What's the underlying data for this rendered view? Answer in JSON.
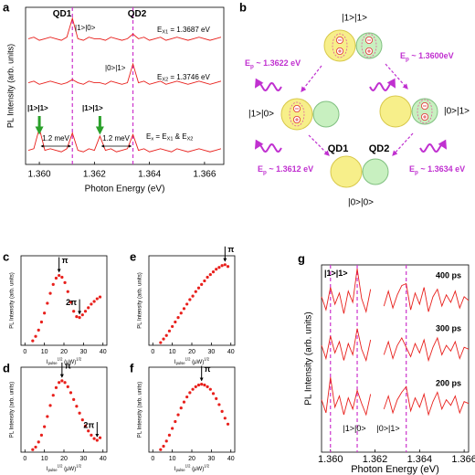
{
  "panel_labels": [
    "a",
    "b",
    "c",
    "d",
    "e",
    "f",
    "g"
  ],
  "chart_data": [
    {
      "type": "line",
      "xlabel": "Photon Energy (eV)",
      "ylabel": "PL Intensity (arb. units)",
      "x": [
        1.3596,
        1.3598,
        1.36,
        1.3602,
        1.3604,
        1.3606,
        1.3608,
        1.361,
        1.3612,
        1.3614,
        1.3616,
        1.3618,
        1.362,
        1.3622,
        1.3624,
        1.3626,
        1.3628,
        1.363,
        1.3632,
        1.3634,
        1.3636,
        1.3638,
        1.364,
        1.3642,
        1.3644,
        1.3646,
        1.3648,
        1.365,
        1.3652,
        1.3654,
        1.3656,
        1.3658,
        1.366,
        1.3662,
        1.3664,
        1.3666
      ],
      "series": [
        {
          "color": "#e8201c",
          "values": [
            8.0,
            8.1,
            7.9,
            8.0,
            8.1,
            8.0,
            7.9,
            8.1,
            9.3,
            8.0,
            7.9,
            8.1,
            8.0,
            8.0,
            7.9,
            8.1,
            8.0,
            7.9,
            8.0,
            8.3,
            8.0,
            8.1,
            7.9,
            8.0,
            8.1,
            7.9,
            8.0,
            8.1,
            8.0,
            7.9,
            8.0,
            8.1,
            8.0,
            7.9,
            8.0,
            8.1
          ]
        },
        {
          "color": "#e8201c",
          "values": [
            5.2,
            5.3,
            5.1,
            5.2,
            5.3,
            5.2,
            5.1,
            5.2,
            5.4,
            5.2,
            5.1,
            5.3,
            5.2,
            5.2,
            5.1,
            5.3,
            5.2,
            5.1,
            5.2,
            6.4,
            5.2,
            5.3,
            5.1,
            5.2,
            5.3,
            5.1,
            5.2,
            5.3,
            5.2,
            5.1,
            5.2,
            5.3,
            5.2,
            5.1,
            5.2,
            5.3
          ]
        },
        {
          "color": "#e8201c",
          "values": [
            0.9,
            1.0,
            2.3,
            0.9,
            1.0,
            0.9,
            0.8,
            1.0,
            2.0,
            0.9,
            0.8,
            1.0,
            0.9,
            1.8,
            0.9,
            1.0,
            0.8,
            0.9,
            1.0,
            1.9,
            0.9,
            1.0,
            0.8,
            0.9,
            1.0,
            0.9,
            0.8,
            1.0,
            0.9,
            0.8,
            0.9,
            1.0,
            0.9,
            0.8,
            0.9,
            1.0
          ]
        }
      ],
      "xlim": [
        1.3595,
        1.3667
      ],
      "ylim": [
        0,
        10
      ],
      "xticks": [
        {
          "value": 1.36,
          "label": "1.360"
        },
        {
          "value": 1.362,
          "label": "1.362"
        },
        {
          "value": 1.364,
          "label": "1.364"
        },
        {
          "value": 1.366,
          "label": "1.366"
        }
      ],
      "vlines": [
        1.3612,
        1.3634
      ],
      "vline_color": "#cc33cc",
      "annotations": [
        {
          "parts": [
            {
              "text": "QD1"
            }
          ]
        },
        {
          "parts": [
            {
              "text": "QD2"
            }
          ]
        },
        {
          "parts": [
            {
              "text": "|1>|0>"
            }
          ]
        },
        {
          "parts": [
            {
              "text": "E"
            },
            {
              "text": "X1",
              "script": "sub"
            },
            {
              "text": " = 1.3687 eV"
            }
          ]
        },
        {
          "parts": [
            {
              "text": "|0>|1>"
            }
          ]
        },
        {
          "parts": [
            {
              "text": "E"
            },
            {
              "text": "X2",
              "script": "sub"
            },
            {
              "text": " = 1.3746 eV"
            }
          ]
        },
        {
          "parts": [
            {
              "text": "|1>|1>"
            }
          ]
        },
        {
          "parts": [
            {
              "text": "|1>|1>"
            }
          ]
        },
        {
          "parts": [
            {
              "text": "1.2 meV"
            }
          ]
        },
        {
          "parts": [
            {
              "text": "1.2 meV"
            }
          ]
        },
        {
          "parts": [
            {
              "text": "E"
            },
            {
              "text": "x",
              "script": "sub"
            },
            {
              "text": " = E"
            },
            {
              "text": "X1",
              "script": "sub"
            },
            {
              "text": " & E"
            },
            {
              "text": "X2",
              "script": "sub"
            }
          ]
        }
      ]
    },
    {
      "type": "scatter",
      "ylabel": "PL Intensity (arb. units)",
      "xlabel": {
        "parts": [
          {
            "text": "I"
          },
          {
            "text": "pulse",
            "script": "sub"
          },
          {
            "text": "1/2",
            "script": "sup"
          },
          {
            "text": " (μW)"
          },
          {
            "text": "1/2",
            "script": "sup"
          }
        ]
      },
      "x": [
        4,
        5.5,
        7,
        8.5,
        10,
        11.5,
        13,
        14.5,
        16,
        17.5,
        19,
        20.5,
        22,
        23.5,
        25,
        26.5,
        28,
        29.5,
        31,
        32.5,
        34,
        35.5,
        37,
        38.5
      ],
      "values": [
        0.05,
        0.1,
        0.17,
        0.26,
        0.36,
        0.47,
        0.58,
        0.68,
        0.75,
        0.78,
        0.76,
        0.7,
        0.6,
        0.48,
        0.38,
        0.32,
        0.31,
        0.34,
        0.38,
        0.42,
        0.46,
        0.49,
        0.52,
        0.54
      ],
      "color": "#e8201c",
      "xlim": [
        -2,
        42
      ],
      "xticks": [
        0,
        10,
        20,
        30,
        40
      ],
      "ylim": [
        0,
        1
      ],
      "annotations": [
        {
          "text": "π",
          "x": 17.5,
          "y": 0.78
        },
        {
          "text": "2π",
          "x": 28,
          "y": 0.31
        }
      ]
    },
    {
      "type": "scatter",
      "ylabel": "PL Intensity (arb. units)",
      "xlabel": {
        "parts": [
          {
            "text": "I"
          },
          {
            "text": "pulse",
            "script": "sub"
          },
          {
            "text": "1/2",
            "script": "sup"
          },
          {
            "text": " (μW)"
          },
          {
            "text": "1/2",
            "script": "sup"
          }
        ]
      },
      "x": [
        4,
        5.5,
        7,
        8.5,
        10,
        11.5,
        13,
        14.5,
        16,
        17.5,
        19,
        20.5,
        22,
        23.5,
        25,
        26.5,
        28,
        29.5,
        31,
        32.5,
        34,
        35.5,
        37,
        38.5
      ],
      "values": [
        0.03,
        0.06,
        0.12,
        0.2,
        0.3,
        0.42,
        0.55,
        0.67,
        0.76,
        0.82,
        0.84,
        0.82,
        0.77,
        0.7,
        0.62,
        0.54,
        0.46,
        0.38,
        0.31,
        0.25,
        0.2,
        0.16,
        0.14,
        0.17
      ],
      "color": "#e8201c",
      "xlim": [
        -2,
        42
      ],
      "xticks": [
        0,
        10,
        20,
        30,
        40
      ],
      "ylim": [
        0,
        1
      ],
      "annotations": [
        {
          "text": "π",
          "x": 19,
          "y": 0.84
        },
        {
          "text": "2π",
          "x": 37,
          "y": 0.14
        }
      ]
    },
    {
      "type": "scatter",
      "ylabel": "PL Intensity (arb. units)",
      "xlabel": {
        "parts": [
          {
            "text": "I"
          },
          {
            "text": "pulse",
            "script": "sub"
          },
          {
            "text": "1/2",
            "script": "sup"
          },
          {
            "text": " (μW)"
          },
          {
            "text": "1/2",
            "script": "sup"
          }
        ]
      },
      "x": [
        4,
        5.5,
        7,
        8.5,
        10,
        11.5,
        13,
        14.5,
        16,
        17.5,
        19,
        20.5,
        22,
        23.5,
        25,
        26.5,
        28,
        29.5,
        31,
        32.5,
        34,
        35.5,
        37,
        38.5
      ],
      "values": [
        0.03,
        0.07,
        0.11,
        0.16,
        0.21,
        0.26,
        0.31,
        0.36,
        0.41,
        0.46,
        0.51,
        0.55,
        0.6,
        0.64,
        0.68,
        0.72,
        0.76,
        0.79,
        0.82,
        0.85,
        0.87,
        0.89,
        0.9,
        0.88
      ],
      "color": "#e8201c",
      "xlim": [
        -2,
        42
      ],
      "xticks": [
        0,
        10,
        20,
        30,
        40
      ],
      "ylim": [
        0,
        1
      ],
      "annotations": [
        {
          "text": "π",
          "x": 37,
          "y": 0.9
        }
      ]
    },
    {
      "type": "scatter",
      "ylabel": "PL Intensity (arb. units)",
      "xlabel": {
        "parts": [
          {
            "text": "I"
          },
          {
            "text": "pulse",
            "script": "sub"
          },
          {
            "text": "1/2",
            "script": "sup"
          },
          {
            "text": " (μW)"
          },
          {
            "text": "1/2",
            "script": "sup"
          }
        ]
      },
      "x": [
        4,
        5.5,
        7,
        8.5,
        10,
        11.5,
        13,
        14.5,
        16,
        17.5,
        19,
        20.5,
        22,
        23.5,
        25,
        26.5,
        28,
        29.5,
        31,
        32.5,
        34,
        35.5,
        37,
        38.5
      ],
      "values": [
        0.03,
        0.07,
        0.13,
        0.2,
        0.28,
        0.36,
        0.44,
        0.52,
        0.59,
        0.65,
        0.7,
        0.74,
        0.77,
        0.79,
        0.8,
        0.79,
        0.77,
        0.74,
        0.69,
        0.63,
        0.56,
        0.48,
        0.4,
        0.33
      ],
      "color": "#e8201c",
      "xlim": [
        -2,
        42
      ],
      "xticks": [
        0,
        10,
        20,
        30,
        40
      ],
      "ylim": [
        0,
        1
      ],
      "annotations": [
        {
          "text": "π",
          "x": 25,
          "y": 0.8
        }
      ]
    },
    {
      "type": "line",
      "xlabel": "Photon Energy (eV)",
      "ylabel": "PL Intensity (arb. units)",
      "x": [
        1.3596,
        1.3598,
        1.36,
        1.3602,
        1.3604,
        1.3606,
        1.3608,
        1.361,
        1.3612,
        1.3614,
        1.3616,
        1.3618,
        1.362,
        1.3622,
        1.3624,
        1.3626,
        1.3628,
        1.363,
        1.3632,
        1.3634,
        1.3636,
        1.3638,
        1.364,
        1.3642,
        1.3644,
        1.3646,
        1.3648,
        1.365,
        1.3652,
        1.3654,
        1.3656,
        1.3658,
        1.366,
        1.3662
      ],
      "series": [
        {
          "name": "400 ps",
          "color": "#e8201c",
          "values": [
            8.3,
            7.6,
            8.8,
            7.9,
            8.5,
            7.4,
            8.6,
            8.0,
            9.8,
            8.2,
            7.5,
            8.7,
            null,
            null,
            7.8,
            8.6,
            7.7,
            8.4,
            8.9,
            9.0,
            7.6,
            8.5,
            7.9,
            8.8,
            7.5,
            8.3,
            8.7,
            7.8,
            8.4,
            8.0,
            8.6,
            7.7,
            8.3,
            8.1
          ]
        },
        {
          "name": "300 ps",
          "color": "#e8201c",
          "values": [
            5.7,
            5.0,
            6.2,
            5.3,
            5.9,
            4.9,
            5.8,
            5.2,
            6.6,
            5.5,
            4.9,
            6.0,
            null,
            null,
            5.2,
            5.9,
            5.0,
            5.7,
            6.1,
            5.6,
            5.1,
            5.8,
            5.3,
            6.0,
            4.9,
            5.6,
            6.1,
            5.2,
            5.7,
            5.4,
            5.9,
            5.0,
            5.6,
            5.5
          ]
        },
        {
          "name": "200 ps",
          "color": "#e8201c",
          "values": [
            2.8,
            2.1,
            4.0,
            2.4,
            3.0,
            2.0,
            2.9,
            2.3,
            3.3,
            2.6,
            2.0,
            3.1,
            null,
            null,
            2.3,
            3.0,
            2.1,
            2.8,
            3.2,
            3.5,
            2.2,
            2.9,
            2.4,
            3.1,
            2.0,
            2.7,
            3.2,
            2.3,
            2.8,
            2.5,
            3.0,
            2.1,
            2.7,
            2.6
          ]
        }
      ],
      "xlim": [
        1.3596,
        1.3662
      ],
      "ylim": [
        0,
        10
      ],
      "xticks": [
        {
          "value": 1.36,
          "label": "1.360"
        },
        {
          "value": 1.362,
          "label": "1.362"
        },
        {
          "value": 1.364,
          "label": "1.364"
        },
        {
          "value": 1.366,
          "label": "1.366"
        }
      ],
      "vlines": [
        1.36,
        1.3612,
        1.3634
      ],
      "vline_color": "#cc33cc",
      "annotations": [
        {
          "parts": [
            {
              "text": "|1>|1>"
            }
          ]
        },
        {
          "parts": [
            {
              "text": "|1>|0>"
            }
          ]
        },
        {
          "parts": [
            {
              "text": "|0>|1>"
            }
          ]
        }
      ]
    }
  ],
  "diagram": {
    "states": [
      "|1>|1>",
      "|1>|0>",
      "|0>|1>",
      "|0>|0>"
    ],
    "dots": [
      "QD1",
      "QD2"
    ],
    "transitions": [
      {
        "parts": [
          {
            "text": "E"
          },
          {
            "text": "p",
            "script": "sub"
          },
          {
            "text": " ~ 1.3622 eV"
          }
        ]
      },
      {
        "parts": [
          {
            "text": "E"
          },
          {
            "text": "p",
            "script": "sub"
          },
          {
            "text": " ~ 1.3600eV"
          }
        ]
      },
      {
        "parts": [
          {
            "text": "E"
          },
          {
            "text": "p",
            "script": "sub"
          },
          {
            "text": " ~ 1.3612 eV"
          }
        ]
      },
      {
        "parts": [
          {
            "text": "E"
          },
          {
            "text": "p",
            "script": "sub"
          },
          {
            "text": " ~ 1.3634 eV"
          }
        ]
      }
    ]
  }
}
